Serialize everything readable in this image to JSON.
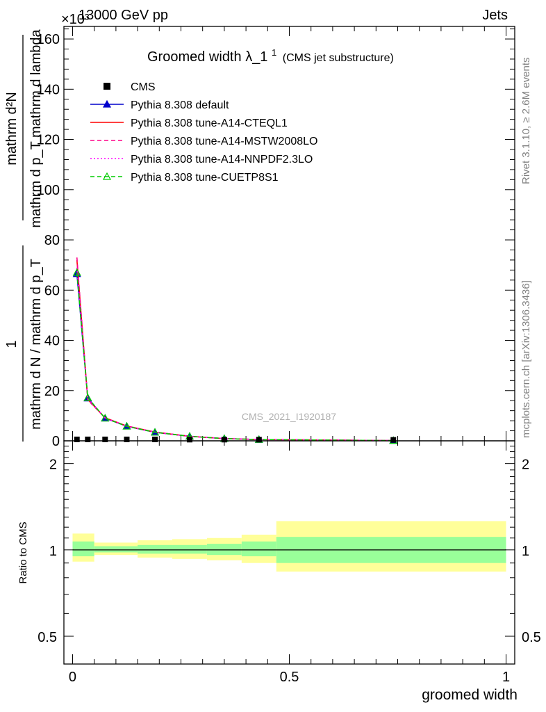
{
  "header": {
    "left": "13000 GeV pp",
    "right": "Jets",
    "exponent": "×10³"
  },
  "side_labels": {
    "rivet": "Rivet 3.1.10, ≥ 2.6M events",
    "mcplots": "mcplots.cern.ch [arXiv:1306.3436]"
  },
  "watermark": "CMS_2021_I1920187",
  "chart_data": [
    {
      "type": "line",
      "title": "Groomed width",
      "title_symbol": "λ_1",
      "title_superscript": "1",
      "subtitle": "(CMS jet substructure)",
      "ylabel_numerator": "1",
      "ylabel_fraction_top": "mathrm d²N",
      "ylabel_fraction_bottom": "mathrm d p_T mathrm d lambda",
      "ylabel_main": "mathrm d N / mathrm d p_T",
      "xlabel": "groomed width",
      "xlim": [
        -0.02,
        1.02
      ],
      "ylim": [
        0,
        165
      ],
      "y_ticks": [
        0,
        20,
        40,
        60,
        80,
        100,
        120,
        140,
        160
      ],
      "x": [
        0.01,
        0.035,
        0.075,
        0.125,
        0.19,
        0.27,
        0.35,
        0.43,
        0.74
      ],
      "x_bins": [
        [
          0.0,
          0.02
        ],
        [
          0.02,
          0.05
        ],
        [
          0.05,
          0.1
        ],
        [
          0.1,
          0.15
        ],
        [
          0.15,
          0.23
        ],
        [
          0.23,
          0.31
        ],
        [
          0.31,
          0.39
        ],
        [
          0.39,
          0.47
        ],
        [
          0.47,
          1.0
        ]
      ],
      "series": [
        {
          "name": "CMS",
          "color": "#000000",
          "style": "marker-square",
          "values": [
            0.3,
            0.3,
            0.3,
            0.3,
            0.3,
            0.2,
            0.2,
            0.2,
            0.1
          ]
        },
        {
          "name": "Pythia 8.308 default",
          "color": "#0000cc",
          "style": "solid-triangle",
          "values": [
            66.5,
            17.0,
            9.0,
            5.8,
            3.4,
            1.8,
            0.9,
            0.5,
            0.1
          ]
        },
        {
          "name": "Pythia 8.308 tune-A14-CTEQL1",
          "color": "#ff0000",
          "style": "solid",
          "values": [
            72.0,
            16.5,
            9.2,
            5.9,
            3.5,
            1.8,
            0.9,
            0.5,
            0.1
          ]
        },
        {
          "name": "Pythia 8.308 tune-A14-MSTW2008LO",
          "color": "#ff0088",
          "style": "dashed",
          "values": [
            73.0,
            16.3,
            9.1,
            5.9,
            3.5,
            1.8,
            0.9,
            0.5,
            0.1
          ]
        },
        {
          "name": "Pythia 8.308 tune-A14-NNPDF2.3LO",
          "color": "#ff00ff",
          "style": "dotted",
          "values": [
            69.0,
            16.8,
            9.1,
            5.8,
            3.4,
            1.8,
            0.9,
            0.5,
            0.1
          ]
        },
        {
          "name": "Pythia 8.308 tune-CUETP8S1",
          "color": "#00cc00",
          "style": "dashed-open-triangle",
          "values": [
            67.0,
            17.2,
            9.0,
            5.8,
            3.4,
            1.8,
            0.9,
            0.5,
            0.1
          ]
        }
      ]
    },
    {
      "type": "area",
      "ylabel": "Ratio to CMS",
      "xlabel": "groomed width",
      "xlim": [
        -0.02,
        1.02
      ],
      "ylim": [
        0.4,
        2.4
      ],
      "log_y": true,
      "y_ticks": [
        0.5,
        1,
        2
      ],
      "x_ticks": [
        0,
        0.5,
        1
      ],
      "bins": [
        [
          0.0,
          0.05
        ],
        [
          0.05,
          0.15
        ],
        [
          0.15,
          0.23
        ],
        [
          0.23,
          0.31
        ],
        [
          0.31,
          0.39
        ],
        [
          0.39,
          0.47
        ],
        [
          0.47,
          1.0
        ]
      ],
      "band_inner": [
        [
          0.95,
          1.07
        ],
        [
          0.98,
          1.03
        ],
        [
          0.97,
          1.04
        ],
        [
          0.97,
          1.04
        ],
        [
          0.96,
          1.05
        ],
        [
          0.95,
          1.07
        ],
        [
          0.9,
          1.11
        ]
      ],
      "band_outer": [
        [
          0.91,
          1.14
        ],
        [
          0.96,
          1.06
        ],
        [
          0.94,
          1.08
        ],
        [
          0.93,
          1.09
        ],
        [
          0.92,
          1.1
        ],
        [
          0.9,
          1.13
        ],
        [
          0.84,
          1.26
        ]
      ],
      "colors": {
        "inner": "#99ff99",
        "outer": "#ffff99"
      }
    }
  ]
}
